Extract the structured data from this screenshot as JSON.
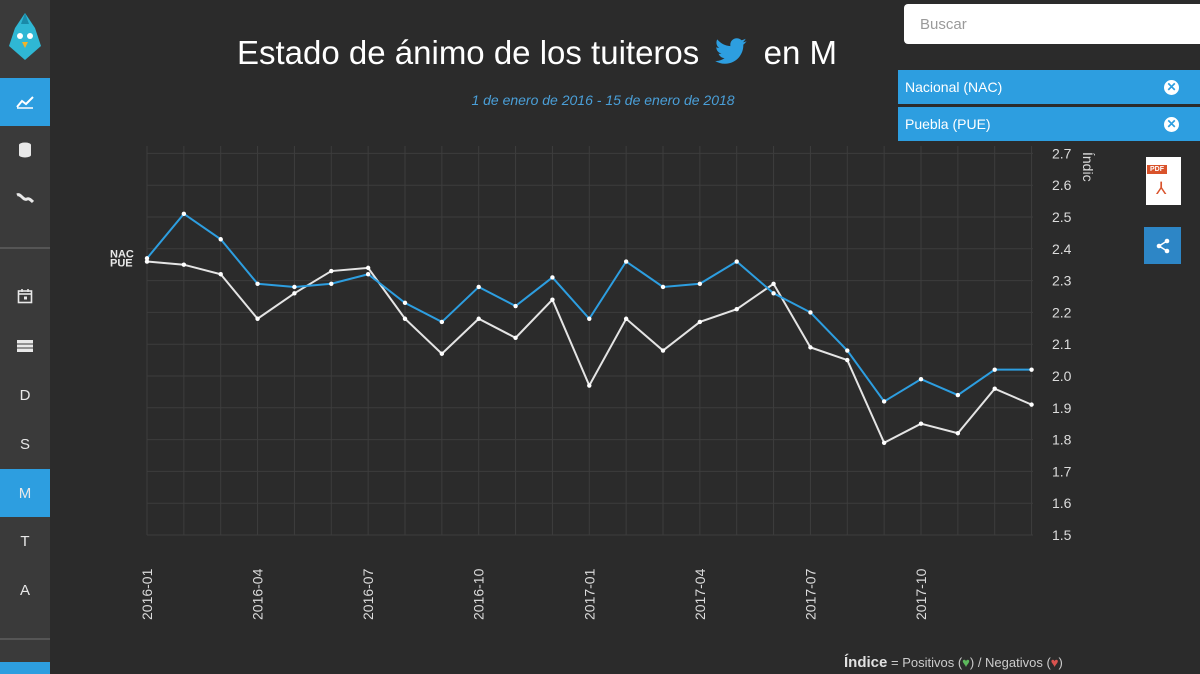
{
  "sidebar": {
    "items": [
      {
        "name": "chart-icon",
        "label": "",
        "active": true
      },
      {
        "name": "database-icon",
        "label": ""
      },
      {
        "name": "trend-icon",
        "label": ""
      },
      {
        "name": "calendar-icon",
        "label": ""
      },
      {
        "name": "table-icon",
        "label": ""
      },
      {
        "name": "letter-d",
        "label": "D"
      },
      {
        "name": "letter-s",
        "label": "S"
      },
      {
        "name": "letter-m",
        "label": "M",
        "active": true
      },
      {
        "name": "letter-t",
        "label": "T"
      },
      {
        "name": "letter-a",
        "label": "A"
      }
    ]
  },
  "header": {
    "title_before": "Estado de ánimo de los tuiteros",
    "title_after": "en M",
    "subtitle": "1 de enero de 2016 - 15 de enero de 2018"
  },
  "search": {
    "placeholder": "Buscar"
  },
  "tags": [
    {
      "label": "Nacional (NAC)"
    },
    {
      "label": "Puebla (PUE)"
    }
  ],
  "export": {
    "pdf_badge": "PDF"
  },
  "footnote": {
    "index_word": "Índice",
    "equals": " = ",
    "positives": "Positivos (",
    "separator": ") / Negativos (",
    "close": ")"
  },
  "colors": {
    "nac": "#2d9ee0",
    "pue": "#e4e4e4",
    "accent": "#2d9ee0",
    "grid": "#3d3d3d"
  },
  "chart_data": {
    "type": "line",
    "title": "Estado de ánimo de los tuiteros en M",
    "ylabel": "Índic",
    "ylim": [
      1.5,
      2.7
    ],
    "yticks": [
      "1.5",
      "1.6",
      "1.7",
      "1.8",
      "1.9",
      "2.0",
      "2.1",
      "2.2",
      "2.3",
      "2.4",
      "2.5",
      "2.6",
      "2.7"
    ],
    "xlabels": [
      "2016-01",
      "2016-04",
      "2016-07",
      "2016-10",
      "2017-01",
      "2017-04",
      "2017-07",
      "2017-10"
    ],
    "x": [
      "2016-01",
      "2016-02",
      "2016-03",
      "2016-04",
      "2016-05",
      "2016-06",
      "2016-07",
      "2016-08",
      "2016-09",
      "2016-10",
      "2016-11",
      "2016-12",
      "2017-01",
      "2017-02",
      "2017-03",
      "2017-04",
      "2017-05",
      "2017-06",
      "2017-07",
      "2017-08",
      "2017-09",
      "2017-10",
      "2017-11",
      "2017-12",
      "2018-01"
    ],
    "series": [
      {
        "name": "NAC",
        "values": [
          2.37,
          2.51,
          2.43,
          2.29,
          2.28,
          2.29,
          2.32,
          2.23,
          2.17,
          2.28,
          2.22,
          2.31,
          2.18,
          2.36,
          2.28,
          2.29,
          2.36,
          2.26,
          2.2,
          2.08,
          1.92,
          1.99,
          1.94,
          2.02,
          2.02
        ]
      },
      {
        "name": "PUE",
        "values": [
          2.36,
          2.35,
          2.32,
          2.18,
          2.26,
          2.33,
          2.34,
          2.18,
          2.07,
          2.18,
          2.12,
          2.24,
          1.97,
          2.18,
          2.08,
          2.17,
          2.21,
          2.29,
          2.09,
          2.05,
          1.79,
          1.85,
          1.82,
          1.96,
          1.91
        ]
      }
    ],
    "grid": true,
    "legend": "series names at line start"
  }
}
